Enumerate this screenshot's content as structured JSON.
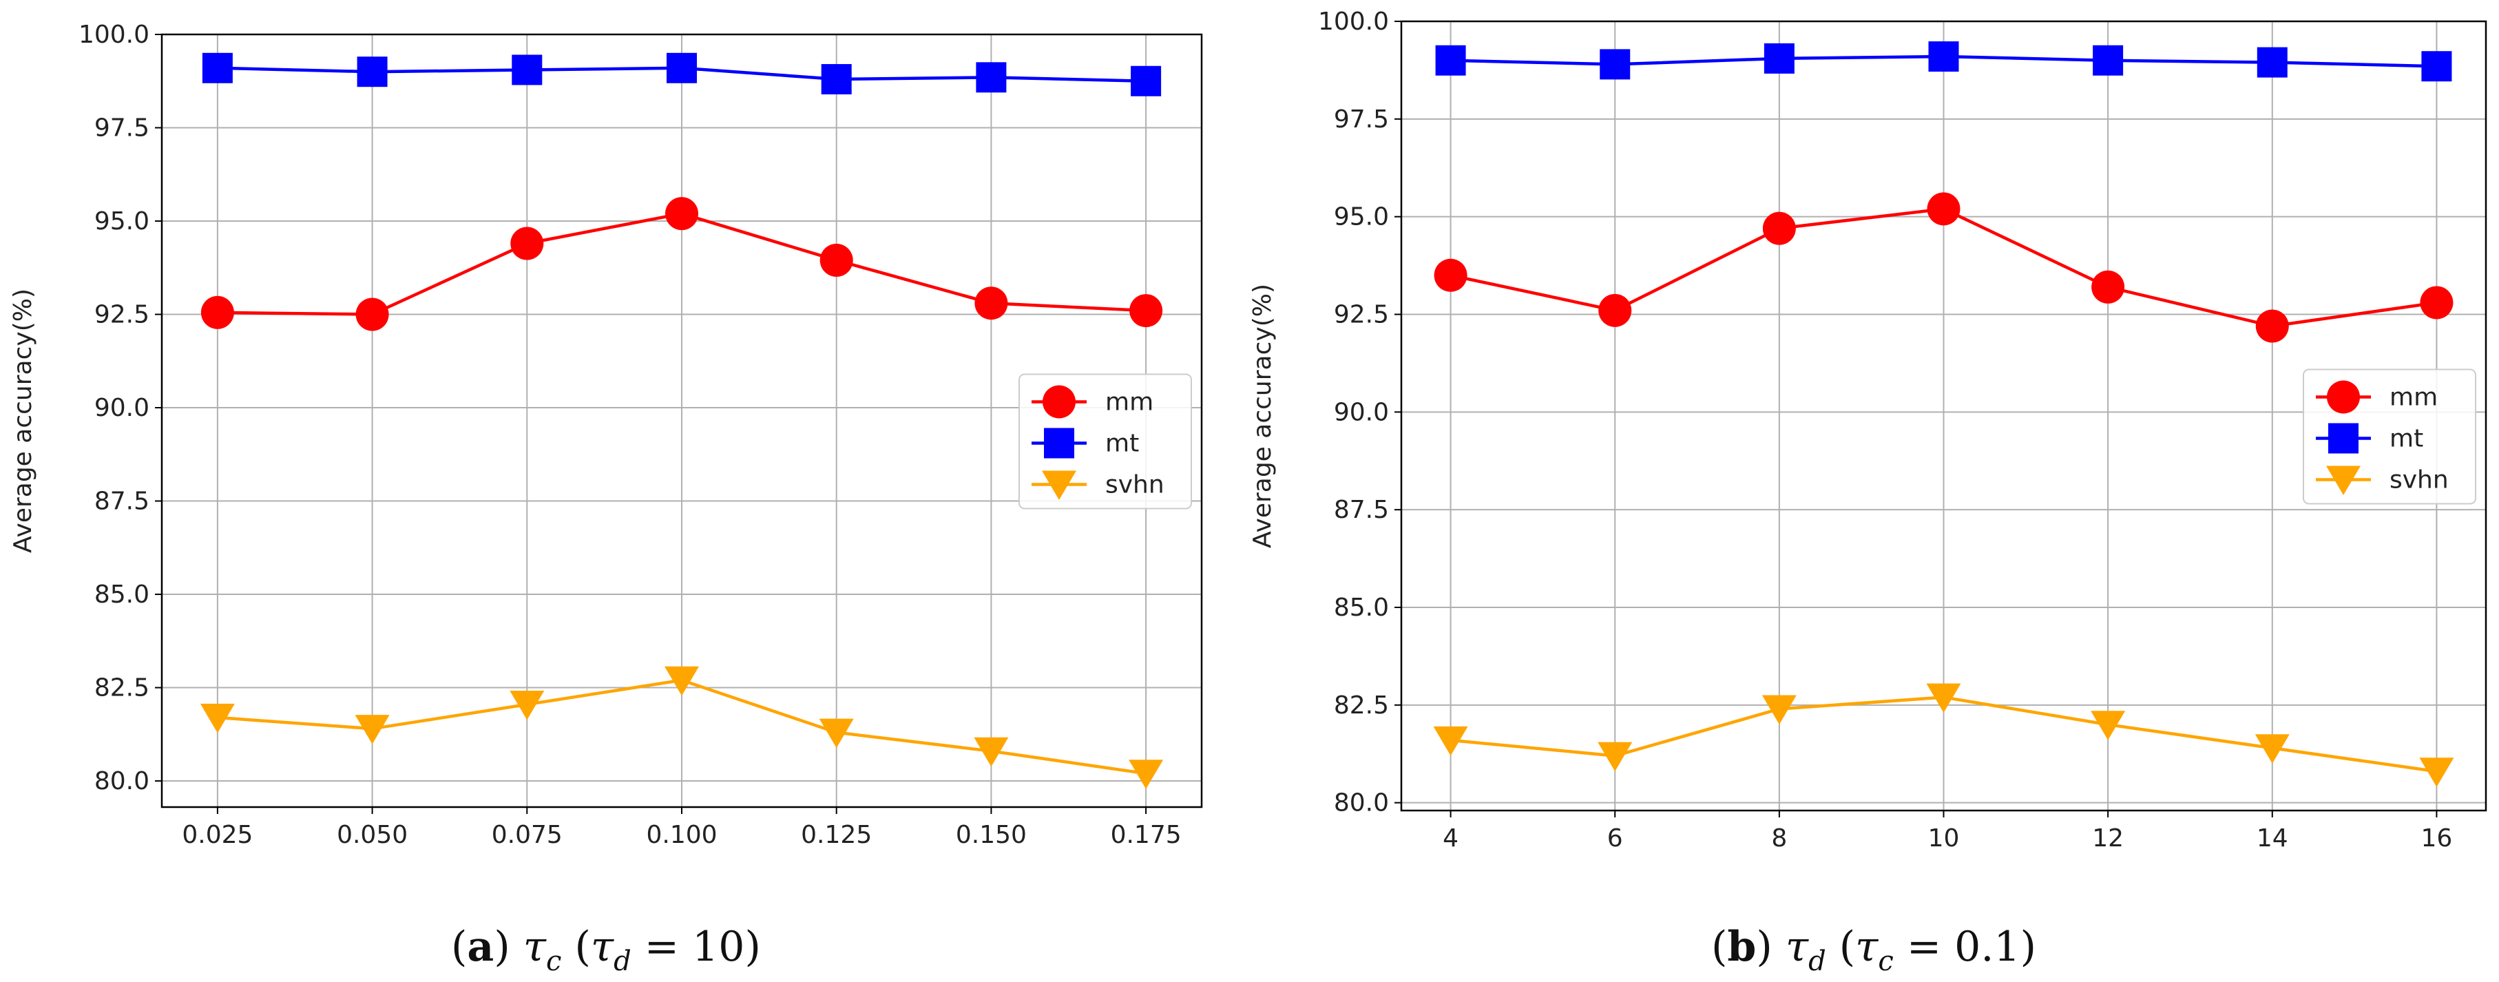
{
  "figure": {
    "colors": {
      "mm": "#ff0000",
      "mt": "#0000ff",
      "svhn": "#ffa500",
      "grid": "#b0b0b0",
      "axis": "#000000"
    }
  },
  "chart_data": [
    {
      "type": "line",
      "title": "",
      "xlabel": "",
      "ylabel": "Average accuracy(%)",
      "x": [
        0.025,
        0.05,
        0.075,
        0.1,
        0.125,
        0.15,
        0.175
      ],
      "x_tick_labels": [
        "0.025",
        "0.050",
        "0.075",
        "0.100",
        "0.125",
        "0.150",
        "0.175"
      ],
      "xlim": [
        0.016,
        0.184
      ],
      "ylim": [
        79.3,
        100.0
      ],
      "y_ticks": [
        80.0,
        82.5,
        85.0,
        87.5,
        90.0,
        92.5,
        95.0,
        97.5,
        100.0
      ],
      "y_tick_labels": [
        "80.0",
        "82.5",
        "85.0",
        "87.5",
        "90.0",
        "92.5",
        "95.0",
        "97.5",
        "100.0"
      ],
      "grid": true,
      "legend_position": "center-right",
      "series": [
        {
          "name": "mm",
          "marker": "circle",
          "color": "#ff0000",
          "values": [
            92.55,
            92.5,
            94.4,
            95.2,
            93.95,
            92.8,
            92.6
          ]
        },
        {
          "name": "mt",
          "marker": "square",
          "color": "#0000ff",
          "values": [
            99.1,
            99.0,
            99.05,
            99.1,
            98.8,
            98.85,
            98.75
          ]
        },
        {
          "name": "svhn",
          "marker": "triangle-down",
          "color": "#ffa500",
          "values": [
            81.7,
            81.4,
            82.05,
            82.7,
            81.3,
            80.8,
            80.2
          ]
        }
      ],
      "caption": {
        "label": "(a)",
        "main_symbol": "τ",
        "main_sub": "c",
        "paren_open": "(",
        "cond_symbol": "τ",
        "cond_sub": "d",
        "cond_value": " = 10",
        "paren_close": ")"
      }
    },
    {
      "type": "line",
      "title": "",
      "xlabel": "",
      "ylabel": "Average accuracy(%)",
      "x": [
        4,
        6,
        8,
        10,
        12,
        14,
        16
      ],
      "x_tick_labels": [
        "4",
        "6",
        "8",
        "10",
        "12",
        "14",
        "16"
      ],
      "xlim": [
        3.4,
        16.6
      ],
      "ylim": [
        79.8,
        100.0
      ],
      "y_ticks": [
        80.0,
        82.5,
        85.0,
        87.5,
        90.0,
        92.5,
        95.0,
        97.5,
        100.0
      ],
      "y_tick_labels": [
        "80.0",
        "82.5",
        "85.0",
        "87.5",
        "90.0",
        "92.5",
        "95.0",
        "97.5",
        "100.0"
      ],
      "grid": true,
      "legend_position": "center-right",
      "series": [
        {
          "name": "mm",
          "marker": "circle",
          "color": "#ff0000",
          "values": [
            93.5,
            92.6,
            94.7,
            95.2,
            93.2,
            92.2,
            92.8
          ]
        },
        {
          "name": "mt",
          "marker": "square",
          "color": "#0000ff",
          "values": [
            99.0,
            98.9,
            99.05,
            99.1,
            99.0,
            98.95,
            98.85
          ]
        },
        {
          "name": "svhn",
          "marker": "triangle-down",
          "color": "#ffa500",
          "values": [
            81.6,
            81.2,
            82.4,
            82.7,
            82.0,
            81.4,
            80.8
          ]
        }
      ],
      "caption": {
        "label": "(b)",
        "main_symbol": "τ",
        "main_sub": "d",
        "paren_open": "(",
        "cond_symbol": "τ",
        "cond_sub": "c",
        "cond_value": " = 0.1",
        "paren_close": ")"
      }
    }
  ]
}
